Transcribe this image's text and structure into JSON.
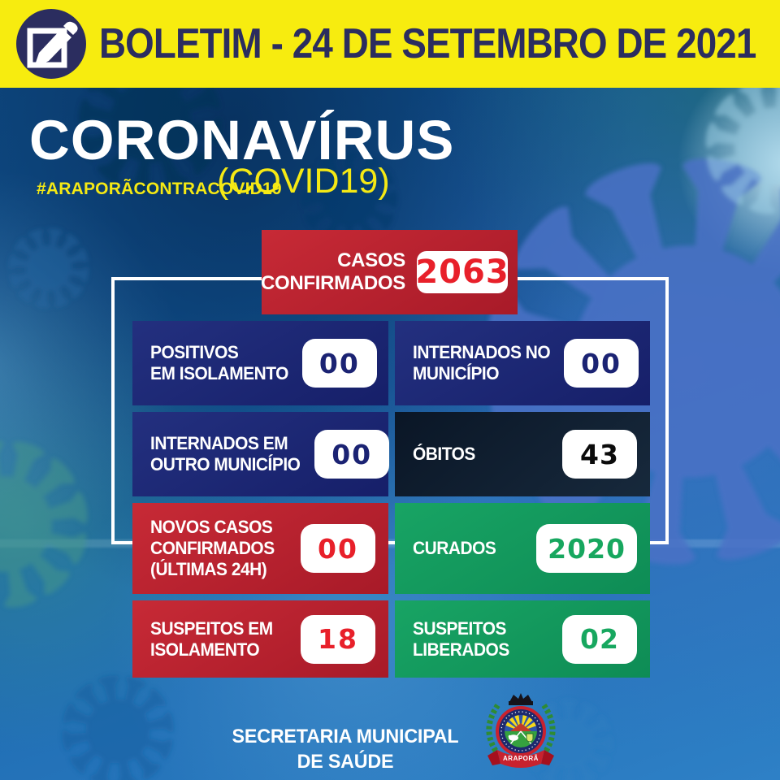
{
  "header": {
    "title": "BOLETIM - 24 DE SETEMBRO DE 2021",
    "icon": "edit-icon"
  },
  "hero": {
    "title": "CORONAVÍRUS",
    "subtitle": "(COVID19)",
    "hashtag": "#ARAPORÃCONTRACOVID19"
  },
  "summary": {
    "label_lines": [
      "CASOS",
      "CONFIRMADOS"
    ],
    "value": "2063"
  },
  "stats": [
    {
      "id": "positivos-em-isolamento",
      "label_lines": [
        "POSITIVOS",
        "EM ISOLAMENTO"
      ],
      "value": "00",
      "theme": "navy"
    },
    {
      "id": "internados-no-municipio",
      "label_lines": [
        "INTERNADOS NO",
        "MUNICÍPIO"
      ],
      "value": "00",
      "theme": "navy"
    },
    {
      "id": "internados-em-outro-municipio",
      "label_lines": [
        "INTERNADOS EM",
        "OUTRO MUNICÍPIO"
      ],
      "value": "00",
      "theme": "navy"
    },
    {
      "id": "obitos",
      "label_lines": [
        "ÓBITOS"
      ],
      "value": "43",
      "theme": "dark"
    },
    {
      "id": "novos-casos-confirmados-ultimas-24h",
      "label_lines": [
        "NOVOS CASOS",
        "CONFIRMADOS",
        "(ÚLTIMAS 24H)"
      ],
      "value": "00",
      "theme": "red"
    },
    {
      "id": "curados",
      "label_lines": [
        "CURADOS"
      ],
      "value": "2020",
      "theme": "green"
    },
    {
      "id": "suspeitos-em-isolamento",
      "label_lines": [
        "SUSPEITOS EM",
        "ISOLAMENTO"
      ],
      "value": "18",
      "theme": "red"
    },
    {
      "id": "suspeitos-liberados",
      "label_lines": [
        "SUSPEITOS",
        "LIBERADOS"
      ],
      "value": "02",
      "theme": "green"
    }
  ],
  "footer": {
    "org_lines": [
      "SECRETARIA MUNICIPAL",
      "DE SAÚDE"
    ],
    "crest_label": "ARAPORÃ"
  },
  "colors": {
    "header_bg": "#F7EC0F",
    "header_text": "#2B2D5F",
    "accent_yellow": "#F5E914",
    "red_box": "#C72A36",
    "red_box_dark": "#A81A28",
    "navy_box": "#23307F",
    "navy_box_dark": "#161F69",
    "green_box": "#18A464",
    "green_box_dark": "#0E8C55",
    "dark_box": "#0A1626",
    "dark_box_2": "#17293C",
    "value_red": "#E8202A",
    "value_green": "#17A75F",
    "value_navy": "#1B2373",
    "value_black": "#0B0B0B",
    "frame": "#FFFFFF"
  }
}
